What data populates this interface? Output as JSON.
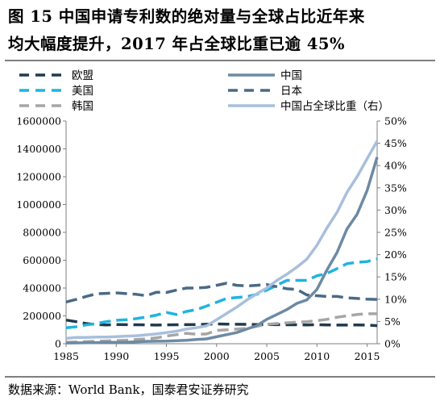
{
  "title": {
    "line1": "图 15  中国申请专利数的绝对量与全球占比近年来",
    "line2": "均大幅度提升，2017 年占全球比重已逾 45%"
  },
  "source": "数据来源：World Bank，国泰君安证券研究",
  "chart_data": {
    "type": "line",
    "xlim": [
      1985,
      2016
    ],
    "x_ticks": [
      1985,
      1990,
      1995,
      2000,
      2005,
      2010,
      2015
    ],
    "y_left": {
      "lim": [
        0,
        1600000
      ],
      "ticks": [
        0,
        200000,
        400000,
        600000,
        800000,
        1000000,
        1200000,
        1400000,
        1600000
      ],
      "tick_labels": [
        "0",
        "200000",
        "400000",
        "600000",
        "800000",
        "1000000",
        "1200000",
        "1400000",
        "1600000"
      ]
    },
    "y_right": {
      "lim": [
        0,
        50
      ],
      "ticks": [
        0,
        5,
        10,
        15,
        20,
        25,
        30,
        35,
        40,
        45,
        50
      ],
      "tick_labels": [
        "0%",
        "5%",
        "10%",
        "15%",
        "20%",
        "25%",
        "30%",
        "35%",
        "40%",
        "45%",
        "50%"
      ]
    },
    "grid": false,
    "legend": "top",
    "series": [
      {
        "name": "欧盟",
        "axis": "left",
        "color": "#1f3a4d",
        "dash": "long",
        "x": [
          1985,
          1986,
          1987,
          1988,
          1989,
          1990,
          1991,
          1992,
          1993,
          1994,
          1995,
          1996,
          1997,
          1998,
          1999,
          2000,
          2001,
          2002,
          2003,
          2004,
          2005,
          2006,
          2007,
          2008,
          2009,
          2010,
          2011,
          2012,
          2013,
          2014,
          2015,
          2016
        ],
        "y": [
          170000,
          158000,
          145000,
          138000,
          135000,
          138000,
          137000,
          136000,
          135000,
          134000,
          135000,
          136000,
          137000,
          138000,
          140000,
          142000,
          141000,
          140000,
          139000,
          138000,
          138000,
          137000,
          136000,
          136000,
          135000,
          136000,
          135000,
          134000,
          134000,
          135000,
          134000,
          130000
        ]
      },
      {
        "name": "美国",
        "axis": "left",
        "color": "#1fb4e0",
        "dash": "long",
        "x": [
          1985,
          1986,
          1987,
          1988,
          1989,
          1990,
          1991,
          1992,
          1993,
          1994,
          1995,
          1996,
          1997,
          1998,
          1999,
          2000,
          2001,
          2002,
          2003,
          2004,
          2005,
          2006,
          2007,
          2008,
          2009,
          2010,
          2011,
          2012,
          2013,
          2014,
          2015,
          2016
        ],
        "y": [
          115000,
          122000,
          135000,
          145000,
          158000,
          168000,
          172000,
          180000,
          192000,
          205000,
          225000,
          210000,
          232000,
          245000,
          270000,
          298000,
          325000,
          332000,
          338000,
          355000,
          385000,
          420000,
          455000,
          455000,
          455000,
          488000,
          505000,
          540000,
          575000,
          585000,
          590000,
          608000
        ]
      },
      {
        "name": "韩国",
        "axis": "left",
        "color": "#a6a6a6",
        "dash": "long",
        "x": [
          1985,
          1986,
          1987,
          1988,
          1989,
          1990,
          1991,
          1992,
          1993,
          1994,
          1995,
          1996,
          1997,
          1998,
          1999,
          2000,
          2001,
          2002,
          2003,
          2004,
          2005,
          2006,
          2007,
          2008,
          2009,
          2010,
          2011,
          2012,
          2013,
          2014,
          2015,
          2016
        ],
        "y": [
          10000,
          12000,
          15000,
          18000,
          20000,
          22000,
          25000,
          30000,
          35000,
          42000,
          55000,
          65000,
          75000,
          68000,
          70000,
          95000,
          100000,
          105000,
          110000,
          125000,
          140000,
          145000,
          150000,
          155000,
          158000,
          165000,
          175000,
          190000,
          200000,
          210000,
          215000,
          215000
        ]
      },
      {
        "name": "中国",
        "axis": "left",
        "color": "#6d8aa3",
        "dash": "solid",
        "x": [
          1985,
          1986,
          1987,
          1988,
          1989,
          1990,
          1991,
          1992,
          1993,
          1994,
          1995,
          1996,
          1997,
          1998,
          1999,
          2000,
          2001,
          2002,
          2003,
          2004,
          2005,
          2006,
          2007,
          2008,
          2009,
          2010,
          2011,
          2012,
          2013,
          2014,
          2015,
          2016
        ],
        "y": [
          5000,
          6000,
          7000,
          8000,
          9000,
          10000,
          11000,
          14000,
          17000,
          18000,
          19000,
          22000,
          25000,
          30000,
          35000,
          50000,
          65000,
          80000,
          105000,
          130000,
          175000,
          210000,
          245000,
          290000,
          315000,
          390000,
          530000,
          655000,
          825000,
          930000,
          1100000,
          1340000
        ]
      },
      {
        "name": "日本",
        "axis": "left",
        "color": "#4a6a86",
        "dash": "long",
        "x": [
          1985,
          1986,
          1987,
          1988,
          1989,
          1990,
          1991,
          1992,
          1993,
          1994,
          1995,
          1996,
          1997,
          1998,
          1999,
          2000,
          2001,
          2002,
          2003,
          2004,
          2005,
          2006,
          2007,
          2008,
          2009,
          2010,
          2011,
          2012,
          2013,
          2014,
          2015,
          2016
        ],
        "y": [
          300000,
          318000,
          340000,
          358000,
          362000,
          365000,
          360000,
          355000,
          345000,
          370000,
          368000,
          385000,
          400000,
          400000,
          405000,
          420000,
          435000,
          420000,
          415000,
          420000,
          425000,
          410000,
          395000,
          390000,
          350000,
          345000,
          340000,
          340000,
          330000,
          325000,
          320000,
          318000
        ]
      },
      {
        "name": "中国占全球比重（右）",
        "axis": "right",
        "color": "#a8bfdc",
        "dash": "solid",
        "x": [
          1985,
          1986,
          1987,
          1988,
          1989,
          1990,
          1991,
          1992,
          1993,
          1994,
          1995,
          1996,
          1997,
          1998,
          1999,
          2000,
          2001,
          2002,
          2003,
          2004,
          2005,
          2006,
          2007,
          2008,
          2009,
          2010,
          2011,
          2012,
          2013,
          2014,
          2015,
          2016
        ],
        "y": [
          1.2,
          1.4,
          1.4,
          1.5,
          1.5,
          1.6,
          1.7,
          1.8,
          2.0,
          2.2,
          2.5,
          2.8,
          3.3,
          3.6,
          4.0,
          5.4,
          6.8,
          8.2,
          9.8,
          11.2,
          12.5,
          14.2,
          15.6,
          17.2,
          19.0,
          22.1,
          26.0,
          29.5,
          34.0,
          37.5,
          41.5,
          45.5
        ]
      }
    ]
  }
}
